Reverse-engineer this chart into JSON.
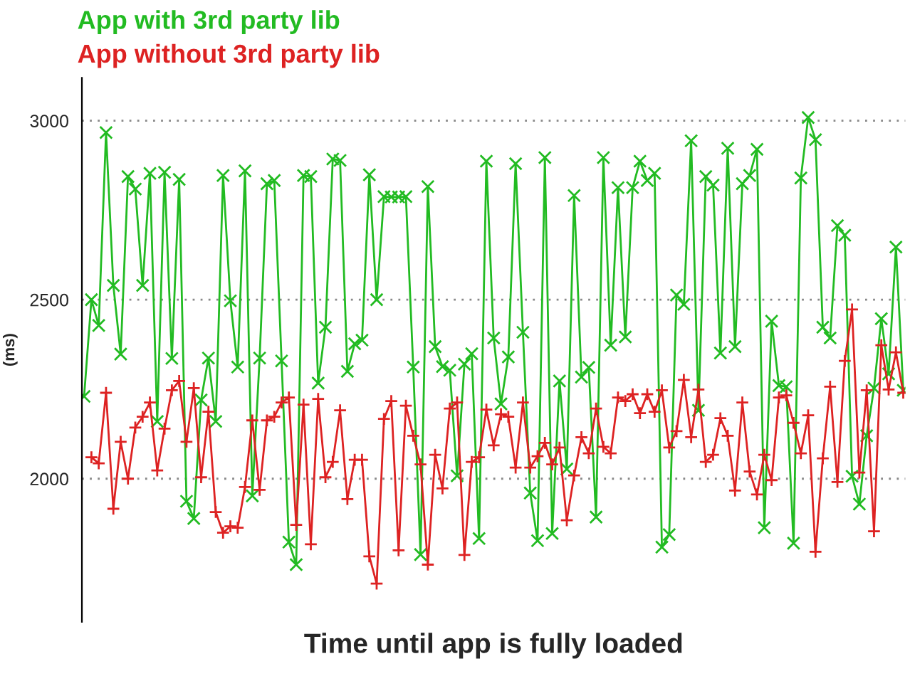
{
  "chart_data": {
    "type": "line",
    "xlabel": "Time until app is fully loaded",
    "ylabel": "(ms)",
    "categories": [
      null,
      null,
      null,
      null,
      null,
      null,
      null,
      null,
      null,
      null,
      null,
      null,
      null,
      null,
      null,
      null,
      null,
      null,
      null,
      null,
      null,
      null,
      null,
      null,
      null,
      null,
      null,
      null,
      null,
      null,
      null,
      null,
      null,
      null,
      null,
      null,
      null,
      null,
      null,
      null,
      null,
      null,
      null,
      null,
      null,
      null,
      null,
      null,
      null,
      null,
      null,
      null,
      null,
      null,
      null,
      null,
      null,
      null,
      null,
      null,
      null,
      null,
      null,
      null,
      null,
      null,
      null,
      null,
      null,
      null,
      null,
      null,
      null,
      null,
      null,
      null,
      null,
      null,
      null,
      null,
      null,
      null,
      null,
      null,
      null,
      null,
      null,
      null,
      null,
      null,
      null,
      null,
      null,
      null,
      null,
      null,
      null,
      null,
      null,
      null,
      null,
      null,
      null,
      null,
      null,
      null,
      null,
      null,
      null,
      null,
      null,
      null,
      null
    ],
    "ylim": [
      1600,
      3120
    ],
    "yticks": [
      2000,
      2500,
      3000
    ],
    "grid": "y",
    "series": [
      {
        "name": "App with 3rd party lib",
        "color": "#22bb22",
        "marker": "cross",
        "values": [
          2230,
          2500,
          2428,
          2967,
          2540,
          2348,
          2844,
          2809,
          2540,
          2853,
          2160,
          2856,
          2336,
          2836,
          1937,
          1889,
          2220,
          2337,
          2160,
          2847,
          2497,
          2312,
          2860,
          1952,
          2337,
          2824,
          2833,
          2329,
          1823,
          1760,
          2847,
          2844,
          2267,
          2423,
          2893,
          2889,
          2300,
          2377,
          2387,
          2849,
          2500,
          2788,
          2787,
          2787,
          2788,
          2312,
          1788,
          2816,
          2369,
          2313,
          2303,
          2008,
          2320,
          2349,
          1833,
          2887,
          2393,
          2209,
          2340,
          2880,
          2409,
          1960,
          1827,
          2897,
          1847,
          2273,
          2027,
          2791,
          2284,
          2311,
          1893,
          2897,
          2373,
          2813,
          2396,
          2813,
          2887,
          2833,
          2853,
          1809,
          1844,
          2513,
          2487,
          2944,
          2191,
          2844,
          2820,
          2351,
          2923,
          2369,
          2824,
          2847,
          2920,
          1863,
          2440,
          2260,
          2257,
          1820,
          2840,
          3009,
          2947,
          2423,
          2393,
          2707,
          2680,
          2007,
          1929,
          2120,
          2253,
          2447,
          2293,
          2647,
          2247
        ]
      },
      {
        "name": "App without 3rd party lib",
        "color": "#dd2222",
        "marker": "plus",
        "values": [
          null,
          2060,
          2043,
          2240,
          1916,
          2103,
          2000,
          2143,
          2173,
          2213,
          2023,
          2140,
          2247,
          2273,
          2103,
          2253,
          2004,
          2187,
          1907,
          1849,
          1867,
          1863,
          1977,
          2163,
          1969,
          2163,
          2173,
          2213,
          2227,
          1871,
          2207,
          1817,
          2223,
          2004,
          2047,
          2191,
          1943,
          2053,
          2053,
          1783,
          1707,
          2167,
          2217,
          1800,
          2204,
          2120,
          2040,
          1760,
          2067,
          1973,
          2196,
          2213,
          1787,
          2047,
          2060,
          2193,
          2093,
          2180,
          2173,
          2031,
          2213,
          2031,
          2063,
          2100,
          2040,
          2087,
          1884,
          2009,
          2116,
          2071,
          2196,
          2089,
          2071,
          2227,
          2217,
          2236,
          2183,
          2236,
          2187,
          2247,
          2087,
          2133,
          2276,
          2116,
          2249,
          2047,
          2067,
          2169,
          2120,
          1967,
          2213,
          2020,
          1956,
          2067,
          1996,
          2227,
          2233,
          2156,
          2071,
          2177,
          1796,
          2057,
          2257,
          1991,
          2329,
          2473,
          2017,
          2247,
          1853,
          2373,
          2249,
          2353,
          2240
        ]
      }
    ]
  }
}
